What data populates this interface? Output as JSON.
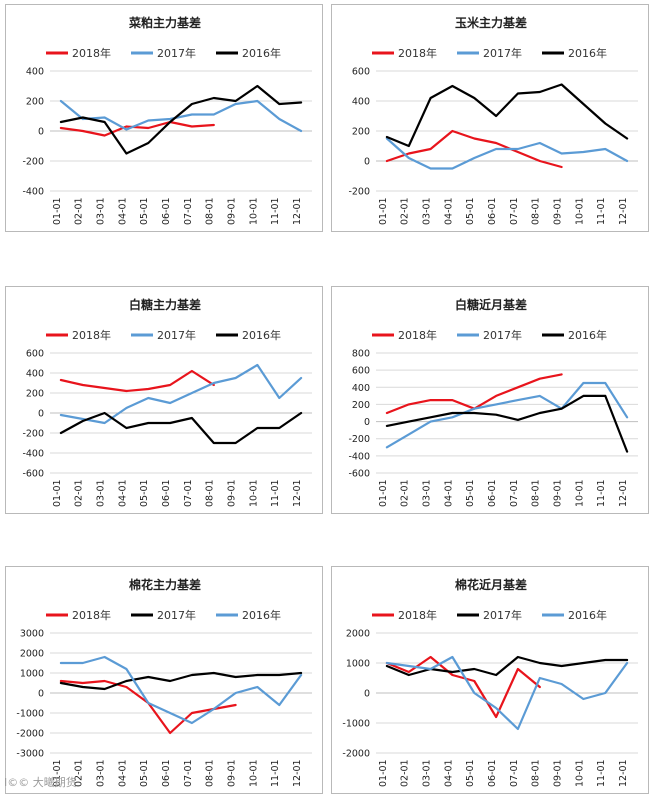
{
  "chart_data": [
    {
      "id": "c1",
      "type": "line",
      "title": "菜粕主力基差",
      "ylim": [
        -400,
        400
      ],
      "yticks": [
        400,
        200,
        0,
        -200,
        -400
      ],
      "categories": [
        "01-01",
        "02-01",
        "03-01",
        "04-01",
        "05-01",
        "06-01",
        "07-01",
        "08-01",
        "09-01",
        "10-01",
        "11-01",
        "12-01"
      ],
      "series": [
        {
          "name": "2018年",
          "color": "#e8141c",
          "values": [
            20,
            0,
            -30,
            30,
            20,
            60,
            30,
            40,
            null,
            null,
            null,
            null
          ]
        },
        {
          "name": "2017年",
          "color": "#5b9bd5",
          "values": [
            200,
            80,
            90,
            10,
            70,
            80,
            110,
            110,
            180,
            200,
            80,
            0
          ]
        },
        {
          "name": "2016年",
          "color": "#000000",
          "values": [
            60,
            90,
            60,
            -150,
            -80,
            60,
            180,
            220,
            200,
            300,
            180,
            190
          ]
        }
      ]
    },
    {
      "id": "c2",
      "type": "line",
      "title": "玉米主力基差",
      "ylim": [
        -200,
        600
      ],
      "yticks": [
        600,
        400,
        200,
        0,
        -200
      ],
      "categories": [
        "01-01",
        "02-01",
        "03-01",
        "04-01",
        "05-01",
        "06-01",
        "07-01",
        "08-01",
        "09-01",
        "10-01",
        "11-01",
        "12-01"
      ],
      "series": [
        {
          "name": "2018年",
          "color": "#e8141c",
          "values": [
            0,
            50,
            80,
            200,
            150,
            120,
            60,
            0,
            -40,
            null,
            null,
            null
          ]
        },
        {
          "name": "2017年",
          "color": "#5b9bd5",
          "values": [
            150,
            20,
            -50,
            -50,
            20,
            80,
            80,
            120,
            50,
            60,
            80,
            0
          ]
        },
        {
          "name": "2016年",
          "color": "#000000",
          "values": [
            160,
            100,
            420,
            500,
            420,
            300,
            450,
            460,
            510,
            380,
            250,
            150
          ]
        }
      ]
    },
    {
      "id": "c3",
      "type": "line",
      "title": "白糖主力基差",
      "ylim": [
        -600,
        600
      ],
      "yticks": [
        600,
        400,
        200,
        0,
        -200,
        -400,
        -600
      ],
      "categories": [
        "01-01",
        "02-01",
        "03-01",
        "04-01",
        "05-01",
        "06-01",
        "07-01",
        "08-01",
        "09-01",
        "10-01",
        "11-01",
        "12-01"
      ],
      "series": [
        {
          "name": "2018年",
          "color": "#e8141c",
          "values": [
            330,
            280,
            250,
            220,
            240,
            280,
            420,
            280,
            null,
            null,
            null,
            null
          ]
        },
        {
          "name": "2017年",
          "color": "#5b9bd5",
          "values": [
            -20,
            -60,
            -100,
            50,
            150,
            100,
            200,
            300,
            350,
            480,
            150,
            350
          ]
        },
        {
          "name": "2016年",
          "color": "#000000",
          "values": [
            -200,
            -80,
            0,
            -150,
            -100,
            -100,
            -50,
            -300,
            -300,
            -150,
            -150,
            0
          ]
        }
      ]
    },
    {
      "id": "c4",
      "type": "line",
      "title": "白糖近月基差",
      "ylim": [
        -600,
        800
      ],
      "yticks": [
        800,
        600,
        400,
        200,
        0,
        -200,
        -400,
        -600
      ],
      "categories": [
        "01-01",
        "02-01",
        "03-01",
        "04-01",
        "05-01",
        "06-01",
        "07-01",
        "08-01",
        "09-01",
        "10-01",
        "11-01",
        "12-01"
      ],
      "series": [
        {
          "name": "2018年",
          "color": "#e8141c",
          "values": [
            100,
            200,
            250,
            250,
            150,
            300,
            400,
            500,
            550,
            null,
            null,
            null
          ]
        },
        {
          "name": "2017年",
          "color": "#5b9bd5",
          "values": [
            -300,
            -150,
            0,
            50,
            150,
            200,
            250,
            300,
            150,
            450,
            450,
            50
          ]
        },
        {
          "name": "2016年",
          "color": "#000000",
          "values": [
            -50,
            0,
            50,
            100,
            100,
            80,
            20,
            100,
            150,
            300,
            300,
            -350
          ]
        }
      ]
    },
    {
      "id": "c5",
      "type": "line",
      "title": "棉花主力基差",
      "ylim": [
        -3000,
        3000
      ],
      "yticks": [
        3000,
        2000,
        1000,
        0,
        -1000,
        -2000,
        -3000
      ],
      "categories": [
        "01-01",
        "02-01",
        "03-01",
        "04-01",
        "05-01",
        "06-01",
        "07-01",
        "08-01",
        "09-01",
        "10-01",
        "11-01",
        "12-01"
      ],
      "series": [
        {
          "name": "2018年",
          "color": "#e8141c",
          "values": [
            600,
            500,
            600,
            300,
            -500,
            -2000,
            -1000,
            -800,
            -600,
            null,
            null,
            null
          ]
        },
        {
          "name": "2017年",
          "color": "#000000",
          "values": [
            500,
            300,
            200,
            600,
            800,
            600,
            900,
            1000,
            800,
            900,
            900,
            1000
          ]
        },
        {
          "name": "2016年",
          "color": "#5b9bd5",
          "values": [
            1500,
            1500,
            1800,
            1200,
            -500,
            -1000,
            -1500,
            -800,
            0,
            300,
            -600,
            900
          ]
        }
      ]
    },
    {
      "id": "c6",
      "type": "line",
      "title": "棉花近月基差",
      "ylim": [
        -2000,
        2000
      ],
      "yticks": [
        2000,
        1000,
        0,
        -1000,
        -2000
      ],
      "categories": [
        "01-01",
        "02-01",
        "03-01",
        "04-01",
        "05-01",
        "06-01",
        "07-01",
        "08-01",
        "09-01",
        "10-01",
        "11-01",
        "12-01"
      ],
      "series": [
        {
          "name": "2018年",
          "color": "#e8141c",
          "values": [
            1000,
            700,
            1200,
            600,
            400,
            -800,
            800,
            200,
            null,
            null,
            null,
            null
          ]
        },
        {
          "name": "2017年",
          "color": "#000000",
          "values": [
            900,
            600,
            800,
            700,
            800,
            600,
            1200,
            1000,
            900,
            1000,
            1100,
            1100
          ]
        },
        {
          "name": "2016年",
          "color": "#5b9bd5",
          "values": [
            1000,
            900,
            800,
            1200,
            0,
            -500,
            -1200,
            500,
            300,
            -200,
            0,
            1000
          ]
        }
      ]
    }
  ],
  "watermark": "I©© 大曦期货"
}
